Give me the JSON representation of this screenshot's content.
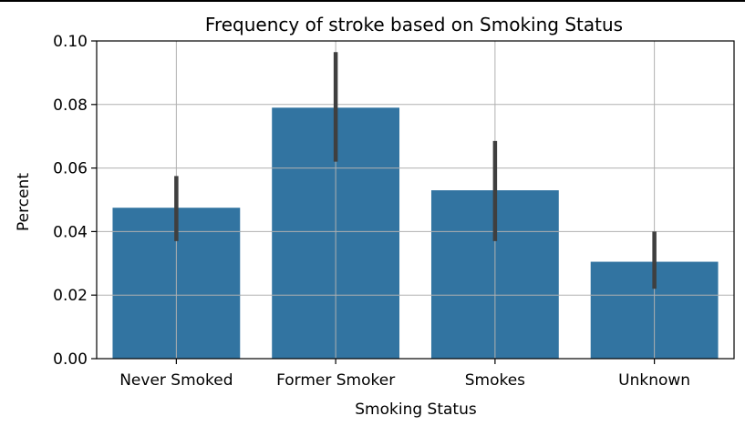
{
  "chart_data": {
    "type": "bar",
    "title": "Frequency of stroke based on Smoking Status",
    "xlabel": "Smoking Status",
    "ylabel": "Percent",
    "categories": [
      "Never Smoked",
      "Former Smoker",
      "Smokes",
      "Unknown"
    ],
    "values": [
      0.0475,
      0.079,
      0.053,
      0.0305
    ],
    "error_low": [
      0.037,
      0.062,
      0.037,
      0.022
    ],
    "error_high": [
      0.0575,
      0.0965,
      0.0685,
      0.04
    ],
    "ylim": [
      0,
      0.1
    ],
    "yticks": [
      "0.00",
      "0.02",
      "0.04",
      "0.06",
      "0.08",
      "0.10"
    ],
    "ytick_values": [
      0,
      0.02,
      0.04,
      0.06,
      0.08,
      0.1
    ],
    "grid": true,
    "bar_color": "#3274a1",
    "error_color": "#3f3f3f",
    "grid_color": "#b0b0b0"
  }
}
